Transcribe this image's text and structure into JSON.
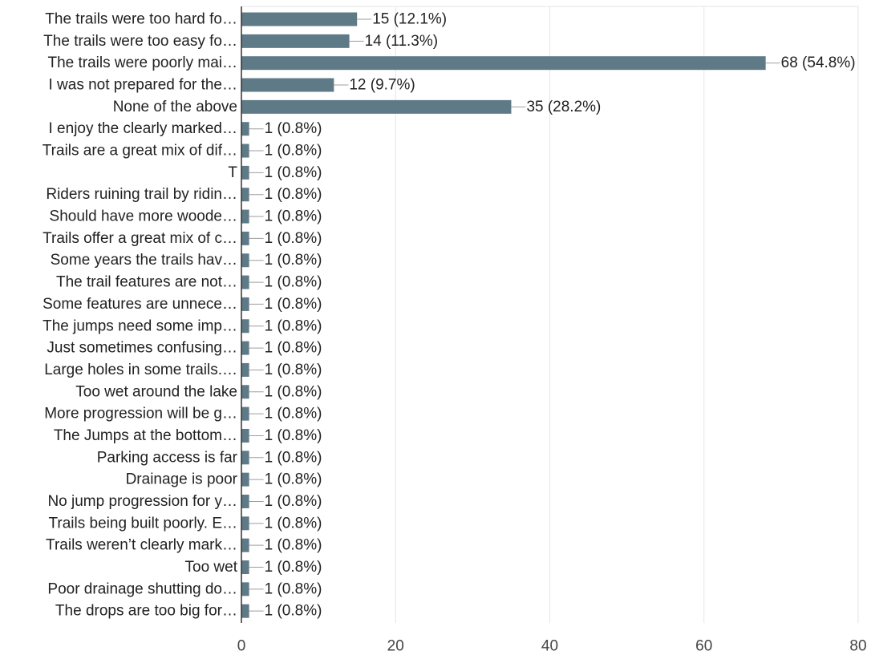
{
  "chart_data": {
    "type": "bar",
    "orientation": "horizontal",
    "categories": [
      "The trails were too hard fo…",
      "The trails were too easy fo…",
      "The trails were poorly mai…",
      "I was not prepared for the…",
      "None of the above",
      "I enjoy the clearly marked…",
      "Trails are a great mix of dif…",
      "T",
      "Riders ruining trail by ridin…",
      "Should have more woode…",
      "Trails offer a great mix of c…",
      "Some years the trails hav…",
      "The trail features are not…",
      "Some features are unnece…",
      "The jumps need some imp…",
      "Just sometimes confusing…",
      "Large holes in some trails.…",
      "Too wet around the lake",
      "More progression will be g…",
      "The Jumps at the bottom…",
      "Parking access is far",
      "Drainage is poor",
      "No jump progression for y…",
      "Trails being built poorly. E…",
      "Trails weren’t clearly mark…",
      "Too wet",
      "Poor drainage shutting do…",
      "The drops are too big for…"
    ],
    "values": [
      15,
      14,
      68,
      12,
      35,
      1,
      1,
      1,
      1,
      1,
      1,
      1,
      1,
      1,
      1,
      1,
      1,
      1,
      1,
      1,
      1,
      1,
      1,
      1,
      1,
      1,
      1,
      1
    ],
    "value_labels": [
      "15 (12.1%)",
      "14 (11.3%)",
      "68 (54.8%)",
      "12 (9.7%)",
      "35 (28.2%)",
      "1 (0.8%)",
      "1 (0.8%)",
      "1 (0.8%)",
      "1 (0.8%)",
      "1 (0.8%)",
      "1 (0.8%)",
      "1 (0.8%)",
      "1 (0.8%)",
      "1 (0.8%)",
      "1 (0.8%)",
      "1 (0.8%)",
      "1 (0.8%)",
      "1 (0.8%)",
      "1 (0.8%)",
      "1 (0.8%)",
      "1 (0.8%)",
      "1 (0.8%)",
      "1 (0.8%)",
      "1 (0.8%)",
      "1 (0.8%)",
      "1 (0.8%)",
      "1 (0.8%)",
      "1 (0.8%)"
    ],
    "x_ticks": [
      0,
      20,
      40,
      60,
      80
    ],
    "xlim": [
      0,
      80
    ],
    "title": "",
    "xlabel": "",
    "ylabel": "",
    "grid": true,
    "legend": "none",
    "bar_color": "#5f7a87"
  }
}
